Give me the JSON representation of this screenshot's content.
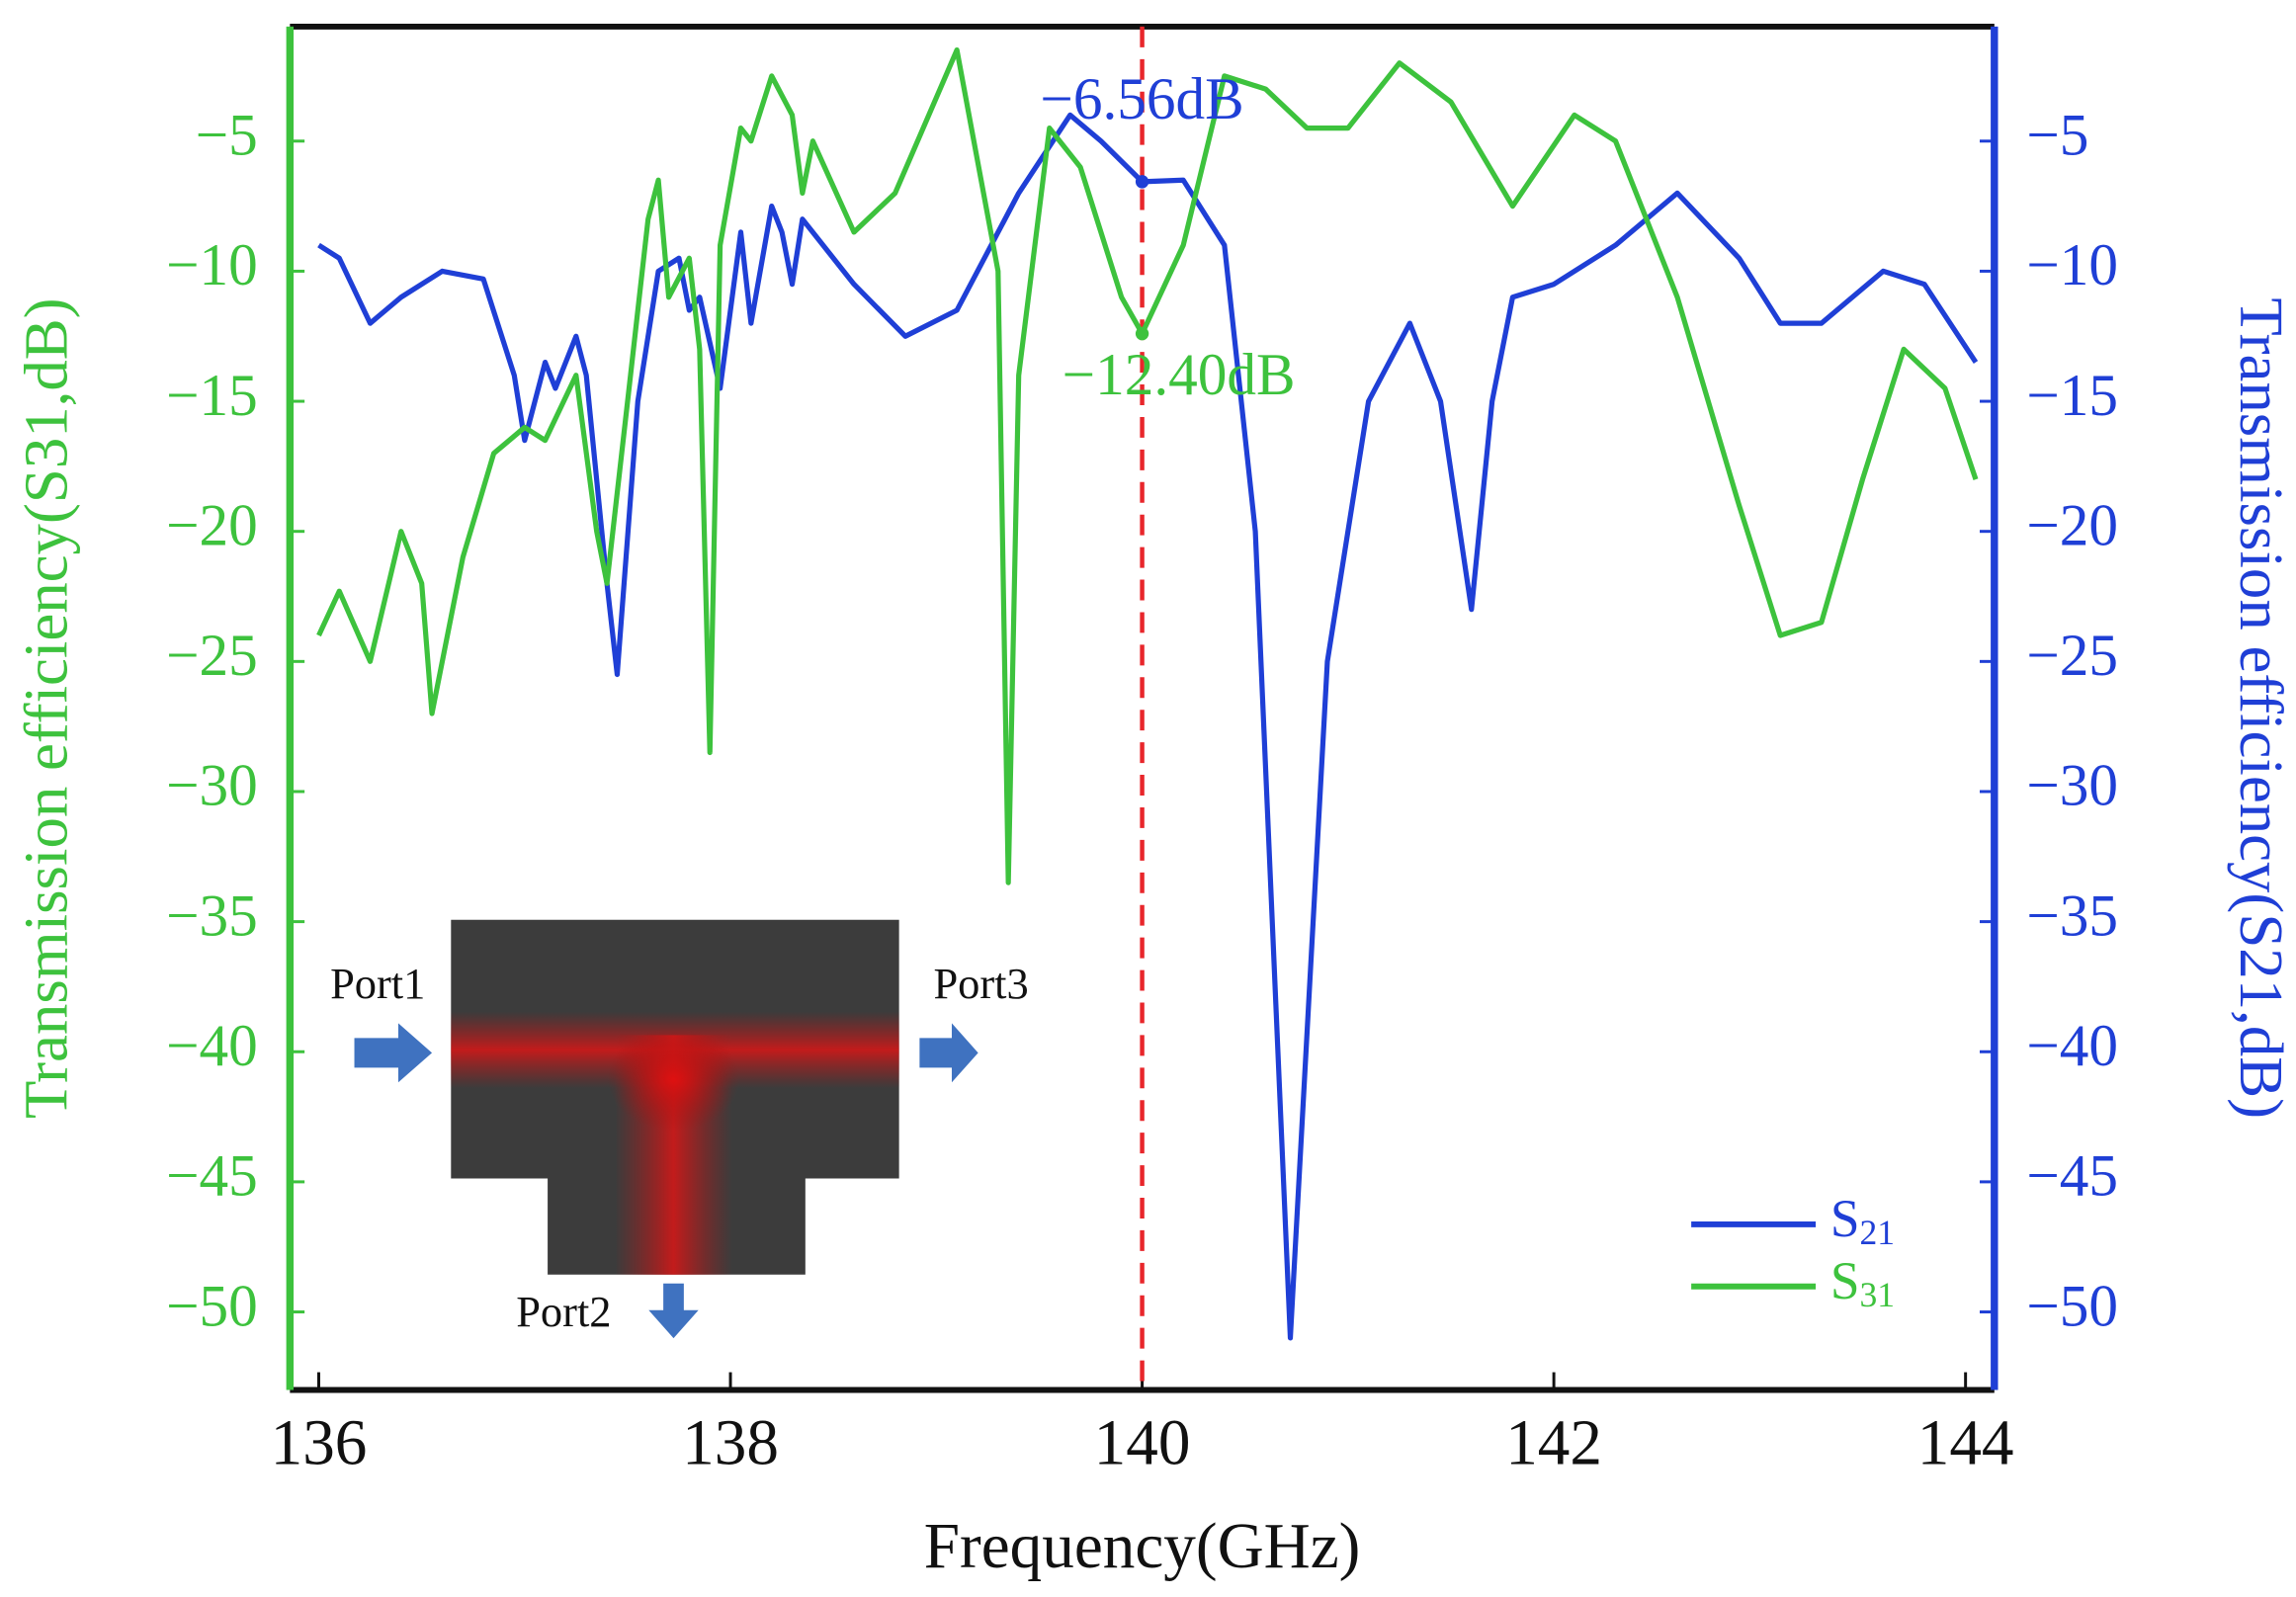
{
  "chart_data": {
    "type": "line",
    "xlabel": "Frequency(GHz)",
    "ylabel": "Transmission efficiency(S31,dB)",
    "y2label": "Transmission efficiency(S21,dB)",
    "xlim": [
      135.86,
      144.14
    ],
    "xticks": [
      136,
      138,
      140,
      142,
      144
    ],
    "ylim": [
      -53,
      -0.6
    ],
    "yticks": [
      {
        "value": -5,
        "label": "−5"
      },
      {
        "value": -10,
        "label": "−10"
      },
      {
        "value": -15,
        "label": "−15"
      },
      {
        "value": -20,
        "label": "−20"
      },
      {
        "value": -25,
        "label": "−25"
      },
      {
        "value": -30,
        "label": "−30"
      },
      {
        "value": -35,
        "label": "−35"
      },
      {
        "value": -40,
        "label": "−40"
      },
      {
        "value": -45,
        "label": "−45"
      },
      {
        "value": -50,
        "label": "−50"
      }
    ],
    "y2lim": [
      -53,
      -0.6
    ],
    "y2ticks": [
      {
        "value": -5,
        "label": "−5"
      },
      {
        "value": -10,
        "label": "−10"
      },
      {
        "value": -15,
        "label": "−15"
      },
      {
        "value": -20,
        "label": "−20"
      },
      {
        "value": -25,
        "label": "−25"
      },
      {
        "value": -30,
        "label": "−30"
      },
      {
        "value": -35,
        "label": "−35"
      },
      {
        "value": -40,
        "label": "−40"
      },
      {
        "value": -45,
        "label": "−45"
      },
      {
        "value": -50,
        "label": "−50"
      }
    ],
    "series": [
      {
        "name": "S21",
        "color": "#1f3fd6",
        "axis": "y2",
        "x": [
          136.0,
          136.1,
          136.25,
          136.4,
          136.6,
          136.8,
          136.95,
          137.0,
          137.05,
          137.1,
          137.15,
          137.25,
          137.3,
          137.4,
          137.45,
          137.55,
          137.65,
          137.75,
          137.8,
          137.85,
          137.95,
          138.05,
          138.1,
          138.2,
          138.25,
          138.3,
          138.35,
          138.6,
          138.85,
          139.1,
          139.4,
          139.65,
          139.8,
          140.0,
          140.2,
          140.4,
          140.55,
          140.72,
          140.9,
          141.1,
          141.3,
          141.45,
          141.6,
          141.7,
          141.8,
          142.0,
          142.3,
          142.6,
          142.9,
          143.1,
          143.3,
          143.6,
          143.8,
          144.05
        ],
        "values": [
          -9,
          -9.5,
          -12,
          -11,
          -10,
          -10.3,
          -14,
          -16.5,
          -15,
          -13.5,
          -14.5,
          -12.5,
          -14,
          -22,
          -25.5,
          -15,
          -10,
          -9.5,
          -11.5,
          -11,
          -14.5,
          -8.5,
          -12,
          -7.5,
          -8.5,
          -10.5,
          -8,
          -10.5,
          -12.5,
          -11.5,
          -7,
          -4,
          -5,
          -6.56,
          -6.5,
          -9,
          -20,
          -51,
          -25,
          -15,
          -12,
          -15,
          -23,
          -15,
          -11,
          -10.5,
          -9,
          -7,
          -9.5,
          -12,
          -12,
          -10,
          -10.5,
          -13.5
        ]
      },
      {
        "name": "S31",
        "color": "#3dc23d",
        "x": [
          136.0,
          136.1,
          136.25,
          136.4,
          136.5,
          136.55,
          136.7,
          136.85,
          137.0,
          137.1,
          137.25,
          137.35,
          137.4,
          137.5,
          137.6,
          137.65,
          137.7,
          137.8,
          137.85,
          137.9,
          137.95,
          138.05,
          138.1,
          138.2,
          138.3,
          138.35,
          138.4,
          138.6,
          138.8,
          139.1,
          139.3,
          139.35,
          139.4,
          139.55,
          139.7,
          139.9,
          140.0,
          140.2,
          140.4,
          140.6,
          140.8,
          141.0,
          141.25,
          141.5,
          141.8,
          142.1,
          142.3,
          142.6,
          142.9,
          143.1,
          143.3,
          143.5,
          143.7,
          143.9,
          144.05
        ],
        "values": [
          -24,
          -22.3,
          -25,
          -20,
          -22,
          -27,
          -21,
          -17,
          -16,
          -16.5,
          -14,
          -20,
          -22,
          -15,
          -8,
          -6.5,
          -11,
          -9.5,
          -13,
          -28.5,
          -9,
          -4.5,
          -5,
          -2.5,
          -4,
          -7,
          -5,
          -8.5,
          -7,
          -1.5,
          -10,
          -33.5,
          -14,
          -4.5,
          -6,
          -11,
          -12.4,
          -9,
          -2.5,
          -3,
          -4.5,
          -4.5,
          -2,
          -3.5,
          -7.5,
          -4,
          -5,
          -11,
          -19,
          -24,
          -23.5,
          -18,
          -13,
          -14.5,
          -18
        ]
      }
    ],
    "vline": 140,
    "markers": [
      {
        "series": 0,
        "x": 140,
        "y": -6.56,
        "label": "−6.56dB"
      },
      {
        "series": 1,
        "x": 140,
        "y": -12.4,
        "label": "−12.40dB"
      }
    ],
    "legend": "lower right",
    "inset_labels": [
      "Port1",
      "Port2",
      "Port3"
    ]
  }
}
